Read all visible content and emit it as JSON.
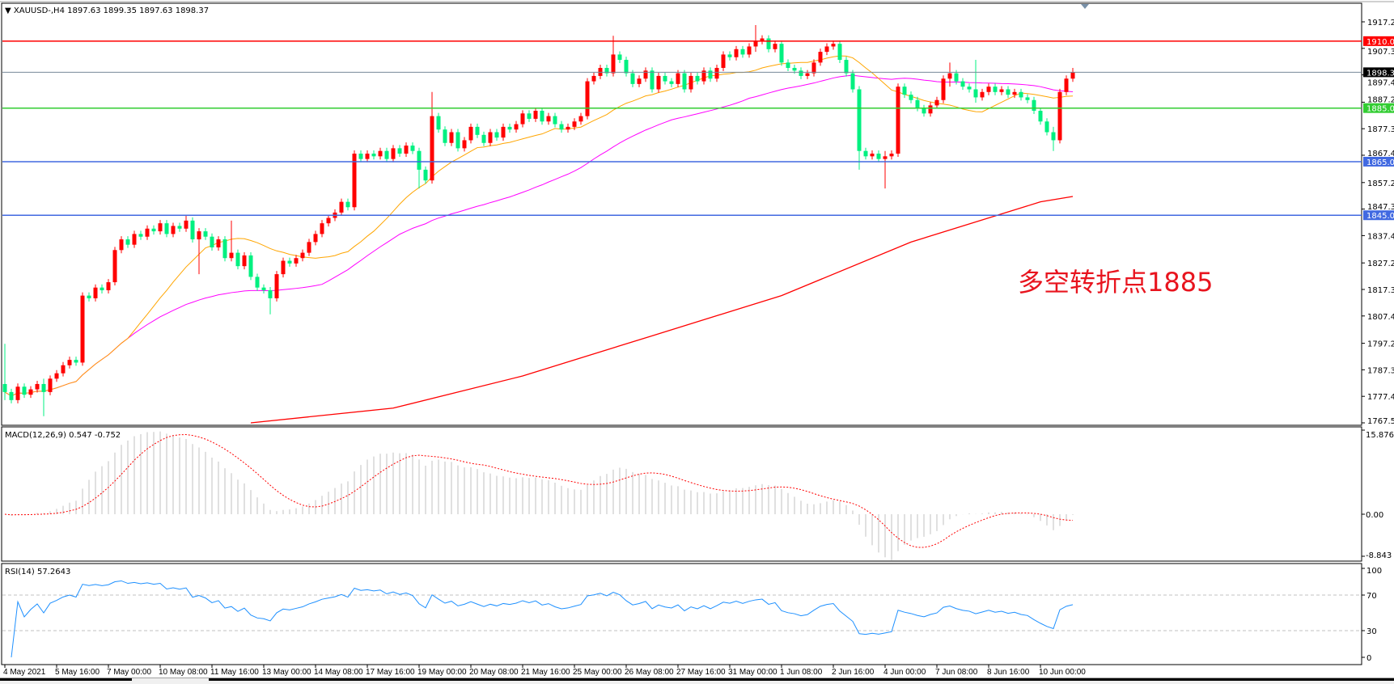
{
  "header": {
    "symbol_line": "XAUUSD-,H4  1897.63 1899.35 1897.63 1898.37"
  },
  "colors": {
    "bull": "#ff0000",
    "bear": "#00f080",
    "ma_fast": "#ffa500",
    "ma_mid": "#ff00ff",
    "ma_slow": "#ff0000",
    "level_red": "#ff0000",
    "level_green": "#32cd32",
    "level_blue": "#4169e1",
    "bid_line": "#778899",
    "rsi": "#1e90ff",
    "macd_signal": "#ff0000",
    "macd_hist": "#c0c0c0"
  },
  "annotation": "多空转折点1885",
  "price_axis": {
    "range": [
      1767.5,
      1917.2
    ],
    "ticks": [
      "1917.20",
      "1907.30",
      "1897.40",
      "1887.20",
      "1877.30",
      "1867.40",
      "1857.20",
      "1847.30",
      "1837.40",
      "1827.20",
      "1817.30",
      "1807.40",
      "1797.20",
      "1787.30",
      "1777.40",
      "1767.50"
    ]
  },
  "levels": [
    {
      "price": 1910.0,
      "label": "1910.00",
      "color": "#ff0000",
      "text_color": "#ffffff"
    },
    {
      "price": 1898.37,
      "label": "1898.37",
      "color": "#000000",
      "text_color": "#ffffff",
      "line_color": "#778899"
    },
    {
      "price": 1885.0,
      "label": "1885.00",
      "color": "#32cd32",
      "text_color": "#ffffff"
    },
    {
      "price": 1865.0,
      "label": "1865.00",
      "color": "#4169e1",
      "text_color": "#ffffff"
    },
    {
      "price": 1845.0,
      "label": "1845.00",
      "color": "#4169e1",
      "text_color": "#ffffff"
    }
  ],
  "time_axis": [
    "4 May 2021",
    "5 May 16:00",
    "7 May 00:00",
    "10 May 08:00",
    "11 May 16:00",
    "13 May 00:00",
    "14 May 08:00",
    "17 May 16:00",
    "19 May 00:00",
    "20 May 08:00",
    "21 May 16:00",
    "25 May 00:00",
    "26 May 08:00",
    "27 May 16:00",
    "31 May 00:00",
    "1 Jun 08:00",
    "2 Jun 16:00",
    "4 Jun 00:00",
    "7 Jun 08:00",
    "8 Jun 16:00",
    "10 Jun 00:00"
  ],
  "macd": {
    "label": "MACD(12,26,9) 0.547 -0.752",
    "params": [
      12,
      26,
      9
    ],
    "axis": [
      "15.876",
      "0.00",
      "-8.843"
    ],
    "range": [
      -8.843,
      15.876
    ]
  },
  "rsi": {
    "label": "RSI(14) 57.2643",
    "period": 14,
    "axis": [
      "100",
      "70",
      "30",
      "0"
    ],
    "levels": [
      70,
      30
    ]
  },
  "chart_data": {
    "type": "candlestick",
    "timeframe": "H4",
    "symbol": "XAUUSD-",
    "closes": [
      1779,
      1776,
      1781,
      1778,
      1780,
      1782,
      1779,
      1784,
      1786,
      1789,
      1791,
      1790,
      1815,
      1814,
      1818,
      1817,
      1820,
      1832,
      1836,
      1834,
      1838,
      1837,
      1840,
      1839,
      1842,
      1838,
      1841,
      1840,
      1843,
      1836,
      1839,
      1837,
      1833,
      1836,
      1829,
      1831,
      1826,
      1830,
      1822,
      1818,
      1817,
      1814,
      1823,
      1828,
      1827,
      1829,
      1831,
      1835,
      1838,
      1842,
      1844,
      1846,
      1850,
      1848,
      1868,
      1866,
      1868,
      1867,
      1869,
      1866,
      1870,
      1868,
      1871,
      1869,
      1862,
      1858,
      1882,
      1877,
      1872,
      1876,
      1870,
      1873,
      1878,
      1875,
      1872,
      1876,
      1874,
      1878,
      1877,
      1879,
      1883,
      1881,
      1884,
      1880,
      1882,
      1879,
      1877,
      1878,
      1880,
      1882,
      1895,
      1897,
      1900,
      1898,
      1905,
      1903,
      1898,
      1894,
      1896,
      1899,
      1892,
      1897,
      1895,
      1894,
      1898,
      1892,
      1897,
      1895,
      1899,
      1896,
      1900,
      1905,
      1904,
      1907,
      1905,
      1908,
      1910,
      1911,
      1907,
      1909,
      1902,
      1900,
      1899,
      1897,
      1898,
      1902,
      1906,
      1908,
      1909,
      1903,
      1898,
      1892,
      1869,
      1867,
      1868,
      1866,
      1867,
      1868,
      1893,
      1890,
      1888,
      1885,
      1883,
      1886,
      1888,
      1896,
      1898,
      1895,
      1893,
      1892,
      1889,
      1891,
      1893,
      1891,
      1892,
      1890,
      1891,
      1889,
      1888,
      1884,
      1880,
      1876,
      1873,
      1891,
      1896,
      1898.37
    ],
    "first_open": 1782,
    "wick_extremes": [
      [
        0,
        1797,
        1776
      ],
      [
        6,
        1784,
        1770
      ],
      [
        28,
        1845,
        1839
      ],
      [
        30,
        1840,
        1823
      ],
      [
        35,
        1843,
        1829
      ],
      [
        41,
        1818,
        1808
      ],
      [
        64,
        1870,
        1855
      ],
      [
        66,
        1891,
        1858
      ],
      [
        94,
        1912,
        1897
      ],
      [
        116,
        1916,
        1906
      ],
      [
        132,
        1893,
        1862
      ],
      [
        136,
        1869,
        1855
      ],
      [
        146,
        1902,
        1893
      ],
      [
        150,
        1903,
        1887
      ],
      [
        162,
        1878,
        1869
      ],
      [
        165,
        1900,
        1897
      ]
    ],
    "ma_fast_period": 20,
    "ma_mid_period": 50,
    "ma_slow_points": [
      [
        38,
        1767.5
      ],
      [
        60,
        1773
      ],
      [
        80,
        1785
      ],
      [
        100,
        1800
      ],
      [
        120,
        1815
      ],
      [
        140,
        1835
      ],
      [
        160,
        1850
      ],
      [
        165,
        1852
      ]
    ]
  }
}
